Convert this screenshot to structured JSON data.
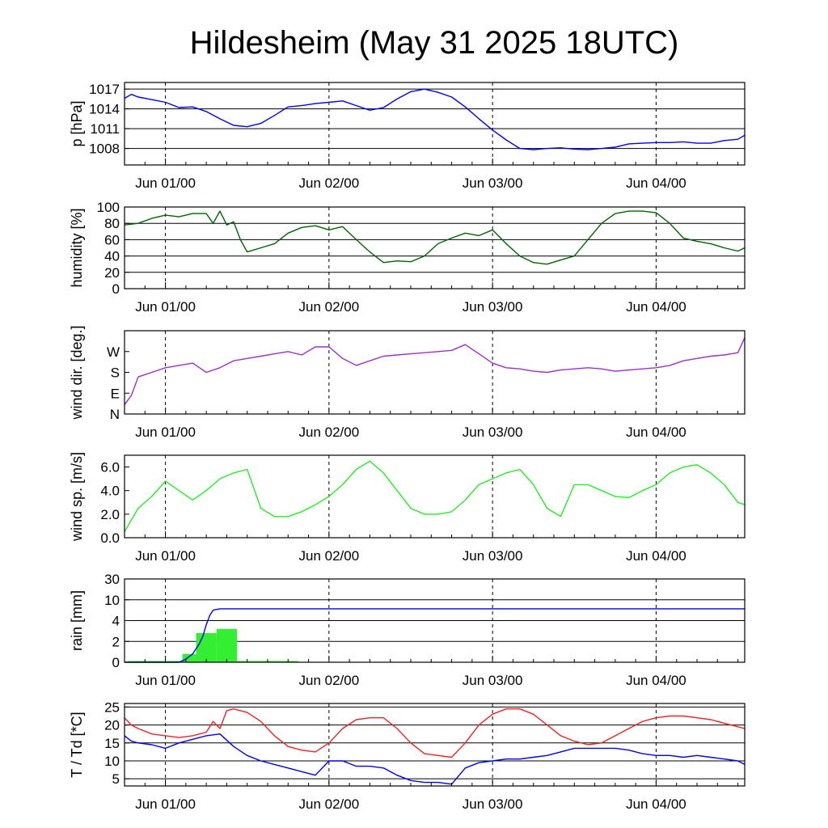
{
  "title": "Hildesheim (May 31 2025 18UTC)",
  "chart_data": [
    {
      "type": "line",
      "ylabel": "p [hPa]",
      "x_tick_labels": [
        "Jun 01/00",
        "Jun 02/00",
        "Jun 03/00",
        "Jun 04/00"
      ],
      "ylim": [
        1005.5,
        1018.0
      ],
      "y_ticks": [
        1008,
        1011,
        1014,
        1017
      ],
      "y_tick_labels": [
        "1008",
        "1011",
        "1014",
        "1017"
      ],
      "grid": true,
      "series": [
        {
          "color": "#0000ee",
          "x": [
            0,
            1,
            2,
            4,
            6,
            8,
            10,
            12,
            14,
            16,
            18,
            20,
            22,
            24,
            26,
            28,
            30,
            32,
            34,
            36,
            38,
            40,
            42,
            44,
            46,
            48,
            50,
            52,
            54,
            56,
            58,
            60,
            62,
            64,
            66,
            68,
            70,
            72,
            74,
            76,
            78,
            80,
            82,
            84,
            86,
            88,
            90,
            91
          ],
          "y": [
            1015.6,
            1016.2,
            1015.8,
            1015.4,
            1015.0,
            1014.2,
            1014.3,
            1013.6,
            1012.5,
            1011.5,
            1011.3,
            1011.8,
            1013.0,
            1014.3,
            1014.5,
            1014.8,
            1015.0,
            1015.2,
            1014.5,
            1013.8,
            1014.2,
            1015.5,
            1016.6,
            1017.0,
            1016.5,
            1015.8,
            1014.3,
            1012.5,
            1010.8,
            1009.3,
            1008.0,
            1007.8,
            1008.0,
            1008.1,
            1007.9,
            1007.8,
            1008.0,
            1008.2,
            1008.7,
            1008.8,
            1008.9,
            1008.9,
            1009.0,
            1008.8,
            1008.8,
            1009.2,
            1009.4,
            1010.0
          ]
        }
      ]
    },
    {
      "type": "line",
      "ylabel": "humidity [%]",
      "x_tick_labels": [
        "Jun 01/00",
        "Jun 02/00",
        "Jun 03/00",
        "Jun 04/00"
      ],
      "ylim": [
        0,
        100
      ],
      "y_ticks": [
        0,
        20,
        40,
        60,
        80,
        100
      ],
      "y_tick_labels": [
        "0",
        "20",
        "40",
        "60",
        "80",
        "100"
      ],
      "grid": true,
      "series": [
        {
          "color": "#006400",
          "x": [
            0,
            2,
            4,
            6,
            8,
            10,
            12,
            13,
            14,
            15,
            16,
            17,
            18,
            20,
            22,
            24,
            26,
            28,
            30,
            32,
            34,
            36,
            38,
            40,
            42,
            44,
            46,
            48,
            50,
            52,
            54,
            56,
            58,
            60,
            62,
            64,
            66,
            68,
            70,
            72,
            74,
            76,
            78,
            80,
            82,
            84,
            86,
            88,
            90,
            91
          ],
          "y": [
            78,
            80,
            86,
            90,
            88,
            92,
            92,
            80,
            95,
            78,
            82,
            60,
            45,
            50,
            55,
            68,
            75,
            77,
            72,
            76,
            60,
            45,
            32,
            34,
            33,
            40,
            55,
            62,
            68,
            65,
            72,
            55,
            40,
            32,
            30,
            35,
            40,
            60,
            80,
            92,
            95,
            95,
            93,
            80,
            62,
            58,
            55,
            50,
            46,
            50
          ]
        }
      ]
    },
    {
      "type": "line",
      "ylabel": "wind dir. [deg.]",
      "x_tick_labels": [
        "Jun 01/00",
        "Jun 02/00",
        "Jun 03/00",
        "Jun 04/00"
      ],
      "ylim": [
        0,
        360
      ],
      "y_ticks": [
        0,
        90,
        180,
        270
      ],
      "y_tick_labels": [
        "N",
        "E",
        "S",
        "W"
      ],
      "grid": false,
      "series": [
        {
          "color": "#9932cc",
          "x": [
            0,
            1,
            2,
            4,
            6,
            8,
            10,
            12,
            14,
            16,
            18,
            20,
            22,
            24,
            26,
            28,
            30,
            32,
            34,
            36,
            38,
            40,
            42,
            44,
            46,
            48,
            50,
            52,
            54,
            56,
            58,
            60,
            62,
            64,
            66,
            68,
            70,
            72,
            74,
            76,
            78,
            80,
            82,
            84,
            86,
            88,
            90,
            91
          ],
          "y": [
            40,
            80,
            160,
            180,
            200,
            210,
            220,
            180,
            200,
            230,
            240,
            250,
            260,
            270,
            255,
            290,
            290,
            240,
            210,
            230,
            250,
            255,
            260,
            265,
            270,
            275,
            300,
            260,
            220,
            200,
            195,
            185,
            180,
            190,
            195,
            200,
            195,
            185,
            190,
            195,
            200,
            210,
            230,
            240,
            250,
            255,
            265,
            330
          ]
        }
      ]
    },
    {
      "type": "line",
      "ylabel": "wind sp. [m/s]",
      "x_tick_labels": [
        "Jun 01/00",
        "Jun 02/00",
        "Jun 03/00",
        "Jun 04/00"
      ],
      "ylim": [
        0.0,
        7.0
      ],
      "y_ticks": [
        0,
        2,
        4,
        6
      ],
      "y_tick_labels": [
        "0.0",
        "2.0",
        "4.0",
        "6.0"
      ],
      "grid": false,
      "series": [
        {
          "color": "#22ee22",
          "x": [
            0,
            1,
            2,
            4,
            6,
            8,
            10,
            12,
            14,
            16,
            18,
            20,
            22,
            24,
            26,
            28,
            30,
            32,
            34,
            36,
            38,
            40,
            42,
            44,
            46,
            48,
            50,
            52,
            54,
            56,
            58,
            60,
            62,
            64,
            66,
            68,
            70,
            72,
            74,
            76,
            78,
            80,
            82,
            84,
            86,
            88,
            90,
            91
          ],
          "y": [
            0.5,
            1.5,
            2.5,
            3.5,
            4.8,
            4.0,
            3.2,
            4.0,
            5.0,
            5.5,
            5.8,
            2.5,
            1.8,
            1.8,
            2.2,
            2.8,
            3.5,
            4.5,
            5.8,
            6.5,
            5.5,
            4.0,
            2.5,
            2.0,
            2.0,
            2.2,
            3.2,
            4.5,
            5.0,
            5.5,
            5.8,
            4.5,
            2.5,
            1.8,
            4.5,
            4.5,
            4.0,
            3.5,
            3.4,
            4.0,
            4.5,
            5.5,
            6.0,
            6.2,
            5.5,
            4.5,
            3.0,
            2.8
          ]
        }
      ]
    },
    {
      "type": "bar",
      "ylabel": "rain [mm]",
      "x_tick_labels": [
        "Jun 01/00",
        "Jun 02/00",
        "Jun 03/00",
        "Jun 04/00"
      ],
      "y_ticks": [
        0,
        2,
        4,
        10,
        30
      ],
      "y_tick_labels": [
        "0",
        "2",
        "4",
        "10",
        "30"
      ],
      "grid": true,
      "bars": {
        "color": "#33ee33",
        "values": [
          {
            "x0": 0.5,
            "x1": 4.5,
            "mm": 0.1
          },
          {
            "x0": 4.5,
            "x1": 8.5,
            "mm": 0.1
          },
          {
            "x0": 8.5,
            "x1": 10.5,
            "mm": 0.8
          },
          {
            "x0": 10.5,
            "x1": 13.5,
            "mm": 2.8
          },
          {
            "x0": 13.5,
            "x1": 16.5,
            "mm": 3.2
          },
          {
            "x0": 16.5,
            "x1": 25.5,
            "mm": 0.05
          }
        ]
      },
      "series": [
        {
          "color": "#0000ee",
          "x": [
            0,
            8,
            9,
            10,
            11,
            11.5,
            12,
            12.5,
            13,
            14,
            15,
            16,
            18,
            20,
            91
          ],
          "y": [
            0,
            0,
            0.3,
            0.8,
            1.8,
            2.5,
            3.6,
            5.5,
            7.0,
            7.4,
            7.4,
            7.4,
            7.4,
            7.4,
            7.4
          ]
        }
      ]
    },
    {
      "type": "line",
      "ylabel": "T / Td [*C]",
      "x_tick_labels": [
        "Jun 01/00",
        "Jun 02/00",
        "Jun 03/00",
        "Jun 04/00"
      ],
      "ylim": [
        3.0,
        26.0
      ],
      "y_ticks": [
        5,
        10,
        15,
        20,
        25
      ],
      "y_tick_labels": [
        "5",
        "10",
        "15",
        "20",
        "25"
      ],
      "grid": true,
      "series": [
        {
          "color": "#ee2222",
          "x": [
            0,
            1,
            2,
            4,
            6,
            8,
            10,
            12,
            13,
            14,
            15,
            16,
            18,
            20,
            22,
            24,
            26,
            28,
            30,
            32,
            34,
            36,
            38,
            40,
            42,
            44,
            46,
            48,
            50,
            52,
            54,
            56,
            58,
            60,
            62,
            64,
            66,
            68,
            70,
            72,
            74,
            76,
            78,
            80,
            82,
            84,
            86,
            88,
            90,
            91
          ],
          "y": [
            22,
            20,
            19,
            17.5,
            17,
            16.5,
            17,
            18,
            21,
            19,
            24,
            24.5,
            23.5,
            21,
            17,
            14,
            13,
            12.5,
            15,
            19,
            21.5,
            22,
            22,
            19,
            15,
            12,
            11.5,
            11,
            15,
            20,
            23,
            24.5,
            24.5,
            23,
            20,
            17,
            15.5,
            14.5,
            15,
            17,
            19,
            21,
            22,
            22.5,
            22.5,
            22,
            21.5,
            20.5,
            19.5,
            19
          ]
        },
        {
          "color": "#0000ee",
          "x": [
            0,
            1,
            2,
            4,
            6,
            8,
            10,
            12,
            14,
            16,
            18,
            20,
            22,
            24,
            26,
            28,
            30,
            32,
            34,
            36,
            38,
            40,
            42,
            44,
            46,
            48,
            50,
            52,
            54,
            56,
            58,
            60,
            62,
            64,
            66,
            68,
            70,
            72,
            74,
            76,
            78,
            80,
            82,
            84,
            86,
            88,
            90,
            91
          ],
          "y": [
            17,
            15.5,
            15,
            14.5,
            13.5,
            15,
            16,
            17,
            17.5,
            14,
            11.5,
            10,
            9,
            8,
            7,
            6,
            10,
            10,
            8.5,
            8.5,
            8,
            6,
            4.5,
            4,
            4,
            3.5,
            8,
            9.5,
            10,
            10.5,
            10.5,
            11,
            11.5,
            12.5,
            13.5,
            13.5,
            13.5,
            13.5,
            13,
            12,
            11.5,
            11.5,
            11,
            11.5,
            11,
            10.5,
            10,
            9
          ]
        }
      ]
    }
  ]
}
